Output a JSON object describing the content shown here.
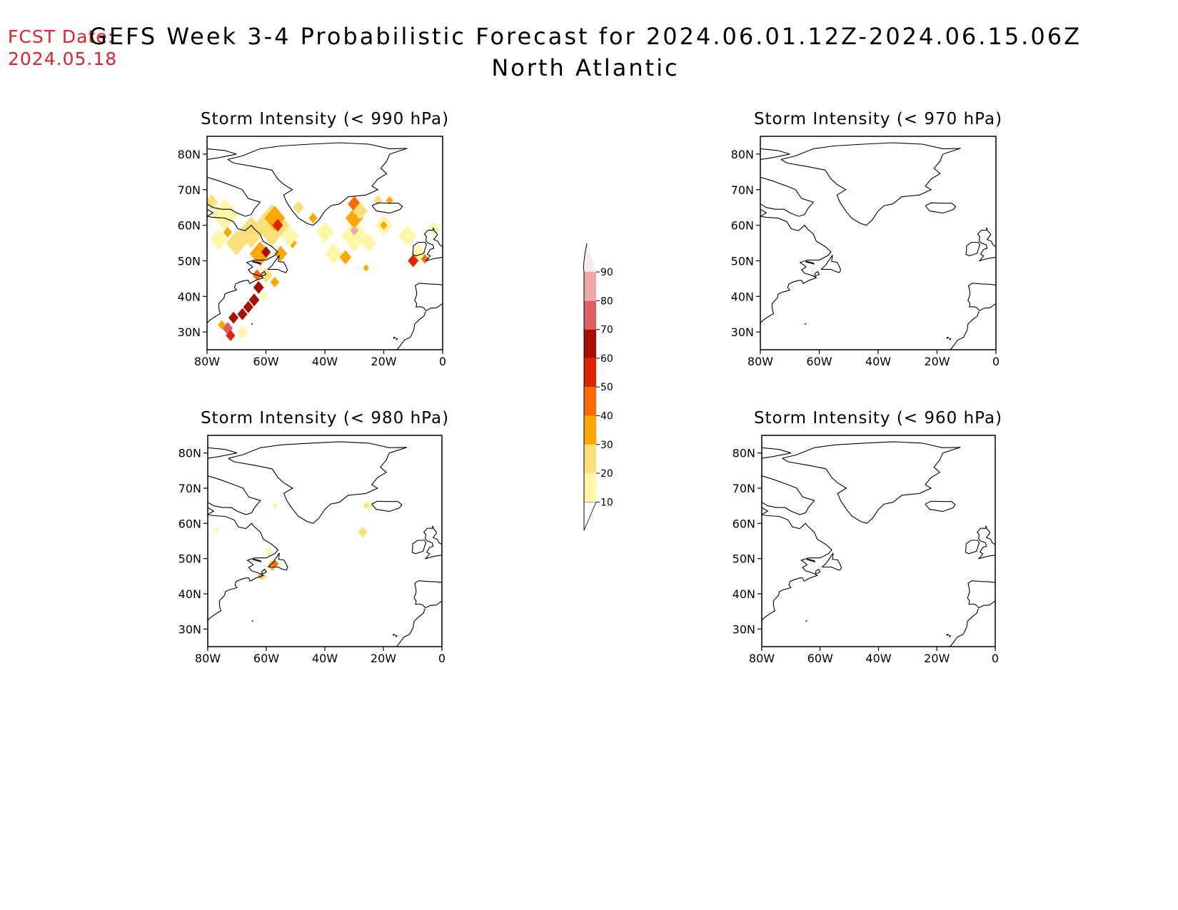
{
  "fcst_date": {
    "label": "FCST Date:",
    "value": "2024.05.18"
  },
  "title": "GEFS Week 3-4 Probabilistic Forecast for 2024.06.01.12Z-2024.06.15.06Z",
  "subtitle": "North Atlantic",
  "colors": {
    "coast": "#000000",
    "fcst_text": "#e8202a"
  },
  "colorbar": {
    "levels": [
      10,
      20,
      30,
      40,
      50,
      60,
      70,
      80,
      90
    ],
    "labels": [
      "10",
      "20",
      "30",
      "40",
      "50",
      "60",
      "70",
      "80",
      "90"
    ],
    "colors": [
      "#fff6a8",
      "#fbe07a",
      "#fca800",
      "#fc6a00",
      "#e02400",
      "#a80e02",
      "#de6060",
      "#f3a6a6",
      "#fde8ea"
    ]
  },
  "axes": {
    "lon_ticks": [
      "80W",
      "60W",
      "40W",
      "20W",
      "0"
    ],
    "lat_ticks": [
      "80N",
      "70N",
      "60N",
      "50N",
      "40N",
      "30N"
    ],
    "lon_range": [
      -80,
      0
    ],
    "lat_range": [
      25,
      85
    ]
  },
  "panels": [
    {
      "title": "Storm Intensity (< 990 hPa)",
      "threshold_hPa": 990,
      "blobs": [
        {
          "lon": -78.5,
          "lat": 66.5,
          "r": 2.2,
          "p": 25
        },
        {
          "lon": -74,
          "lat": 63,
          "r": 4.5,
          "p": 18
        },
        {
          "lon": -76,
          "lat": 56,
          "r": 3,
          "p": 15
        },
        {
          "lon": -73,
          "lat": 58,
          "r": 1.5,
          "p": 35
        },
        {
          "lon": -70,
          "lat": 55,
          "r": 3.5,
          "p": 25
        },
        {
          "lon": -65,
          "lat": 58,
          "r": 4.5,
          "p": 22
        },
        {
          "lon": -62,
          "lat": 52,
          "r": 3.5,
          "p": 30
        },
        {
          "lon": -58,
          "lat": 60,
          "r": 6,
          "p": 22
        },
        {
          "lon": -57,
          "lat": 62,
          "r": 3.5,
          "p": 35
        },
        {
          "lon": -56,
          "lat": 60,
          "r": 1.8,
          "p": 58
        },
        {
          "lon": -60,
          "lat": 52.5,
          "r": 1.6,
          "p": 68
        },
        {
          "lon": -55,
          "lat": 52,
          "r": 2.2,
          "p": 32
        },
        {
          "lon": -51,
          "lat": 55,
          "r": 1.5,
          "p": 32
        },
        {
          "lon": -52,
          "lat": 57,
          "r": 3,
          "p": 15
        },
        {
          "lon": -49,
          "lat": 65,
          "r": 1.8,
          "p": 25
        },
        {
          "lon": -44,
          "lat": 62,
          "r": 1.5,
          "p": 35
        },
        {
          "lon": -40,
          "lat": 58,
          "r": 3,
          "p": 15
        },
        {
          "lon": -37,
          "lat": 52,
          "r": 3,
          "p": 18
        },
        {
          "lon": -33,
          "lat": 51,
          "r": 2,
          "p": 35
        },
        {
          "lon": -30,
          "lat": 57,
          "r": 4.5,
          "p": 18
        },
        {
          "lon": -30,
          "lat": 62,
          "r": 3,
          "p": 35
        },
        {
          "lon": -30,
          "lat": 66,
          "r": 2.2,
          "p": 42
        },
        {
          "lon": -30,
          "lat": 58.5,
          "r": 1.4,
          "p": 82
        },
        {
          "lon": -28,
          "lat": 64,
          "r": 2.5,
          "p": 25
        },
        {
          "lon": -25,
          "lat": 55,
          "r": 2.5,
          "p": 15
        },
        {
          "lon": -20,
          "lat": 60,
          "r": 3,
          "p": 15
        },
        {
          "lon": -20,
          "lat": 60,
          "r": 1.2,
          "p": 35
        },
        {
          "lon": -22,
          "lat": 67,
          "r": 1.5,
          "p": 22
        },
        {
          "lon": -18,
          "lat": 67,
          "r": 1.2,
          "p": 35
        },
        {
          "lon": -12,
          "lat": 57,
          "r": 3,
          "p": 15
        },
        {
          "lon": -8,
          "lat": 52,
          "r": 2.5,
          "p": 18
        },
        {
          "lon": -10,
          "lat": 50,
          "r": 1.8,
          "p": 58
        },
        {
          "lon": -6,
          "lat": 50.5,
          "r": 1.3,
          "p": 45
        },
        {
          "lon": -3,
          "lat": 59,
          "r": 2,
          "p": 15
        },
        {
          "lon": -60,
          "lat": 46,
          "r": 2.2,
          "p": 25
        },
        {
          "lon": -57,
          "lat": 44,
          "r": 1.5,
          "p": 35
        },
        {
          "lon": -63,
          "lat": 46,
          "r": 1.6,
          "p": 45
        },
        {
          "lon": -62.5,
          "lat": 42.5,
          "r": 1.8,
          "p": 65
        },
        {
          "lon": -64,
          "lat": 39,
          "r": 1.8,
          "p": 65
        },
        {
          "lon": -66,
          "lat": 37,
          "r": 1.7,
          "p": 62
        },
        {
          "lon": -68,
          "lat": 35,
          "r": 1.7,
          "p": 62
        },
        {
          "lon": -71,
          "lat": 34,
          "r": 1.7,
          "p": 62
        },
        {
          "lon": -73,
          "lat": 31,
          "r": 1.8,
          "p": 70
        },
        {
          "lon": -72,
          "lat": 29,
          "r": 1.6,
          "p": 55
        },
        {
          "lon": -75,
          "lat": 32,
          "r": 1.3,
          "p": 35
        },
        {
          "lon": -68,
          "lat": 30,
          "r": 1.8,
          "p": 15
        },
        {
          "lon": -61,
          "lat": 40,
          "r": 1.2,
          "p": 12
        },
        {
          "lon": -26,
          "lat": 48,
          "r": 1,
          "p": 35
        }
      ]
    },
    {
      "title": "Storm Intensity (< 970 hPa)",
      "threshold_hPa": 970,
      "blobs": []
    },
    {
      "title": "Storm Intensity (< 980 hPa)",
      "threshold_hPa": 980,
      "blobs": [
        {
          "lon": -58,
          "lat": 48,
          "r": 1.5,
          "p": 32
        },
        {
          "lon": -57,
          "lat": 48.5,
          "r": 1.2,
          "p": 45
        },
        {
          "lon": -61,
          "lat": 45,
          "r": 1.2,
          "p": 22
        },
        {
          "lon": -62,
          "lat": 45,
          "r": 0.9,
          "p": 35
        },
        {
          "lon": -59,
          "lat": 52,
          "r": 1.2,
          "p": 12
        },
        {
          "lon": -77,
          "lat": 58,
          "r": 1,
          "p": 12
        },
        {
          "lon": -57,
          "lat": 65,
          "r": 1,
          "p": 12
        },
        {
          "lon": -27,
          "lat": 57.5,
          "r": 1.6,
          "p": 22
        },
        {
          "lon": -25,
          "lat": 65,
          "r": 1.5,
          "p": 12
        },
        {
          "lon": -26,
          "lat": 65,
          "r": 0.9,
          "p": 22
        }
      ]
    },
    {
      "title": "Storm Intensity (< 960 hPa)",
      "threshold_hPa": 960,
      "blobs": []
    }
  ]
}
